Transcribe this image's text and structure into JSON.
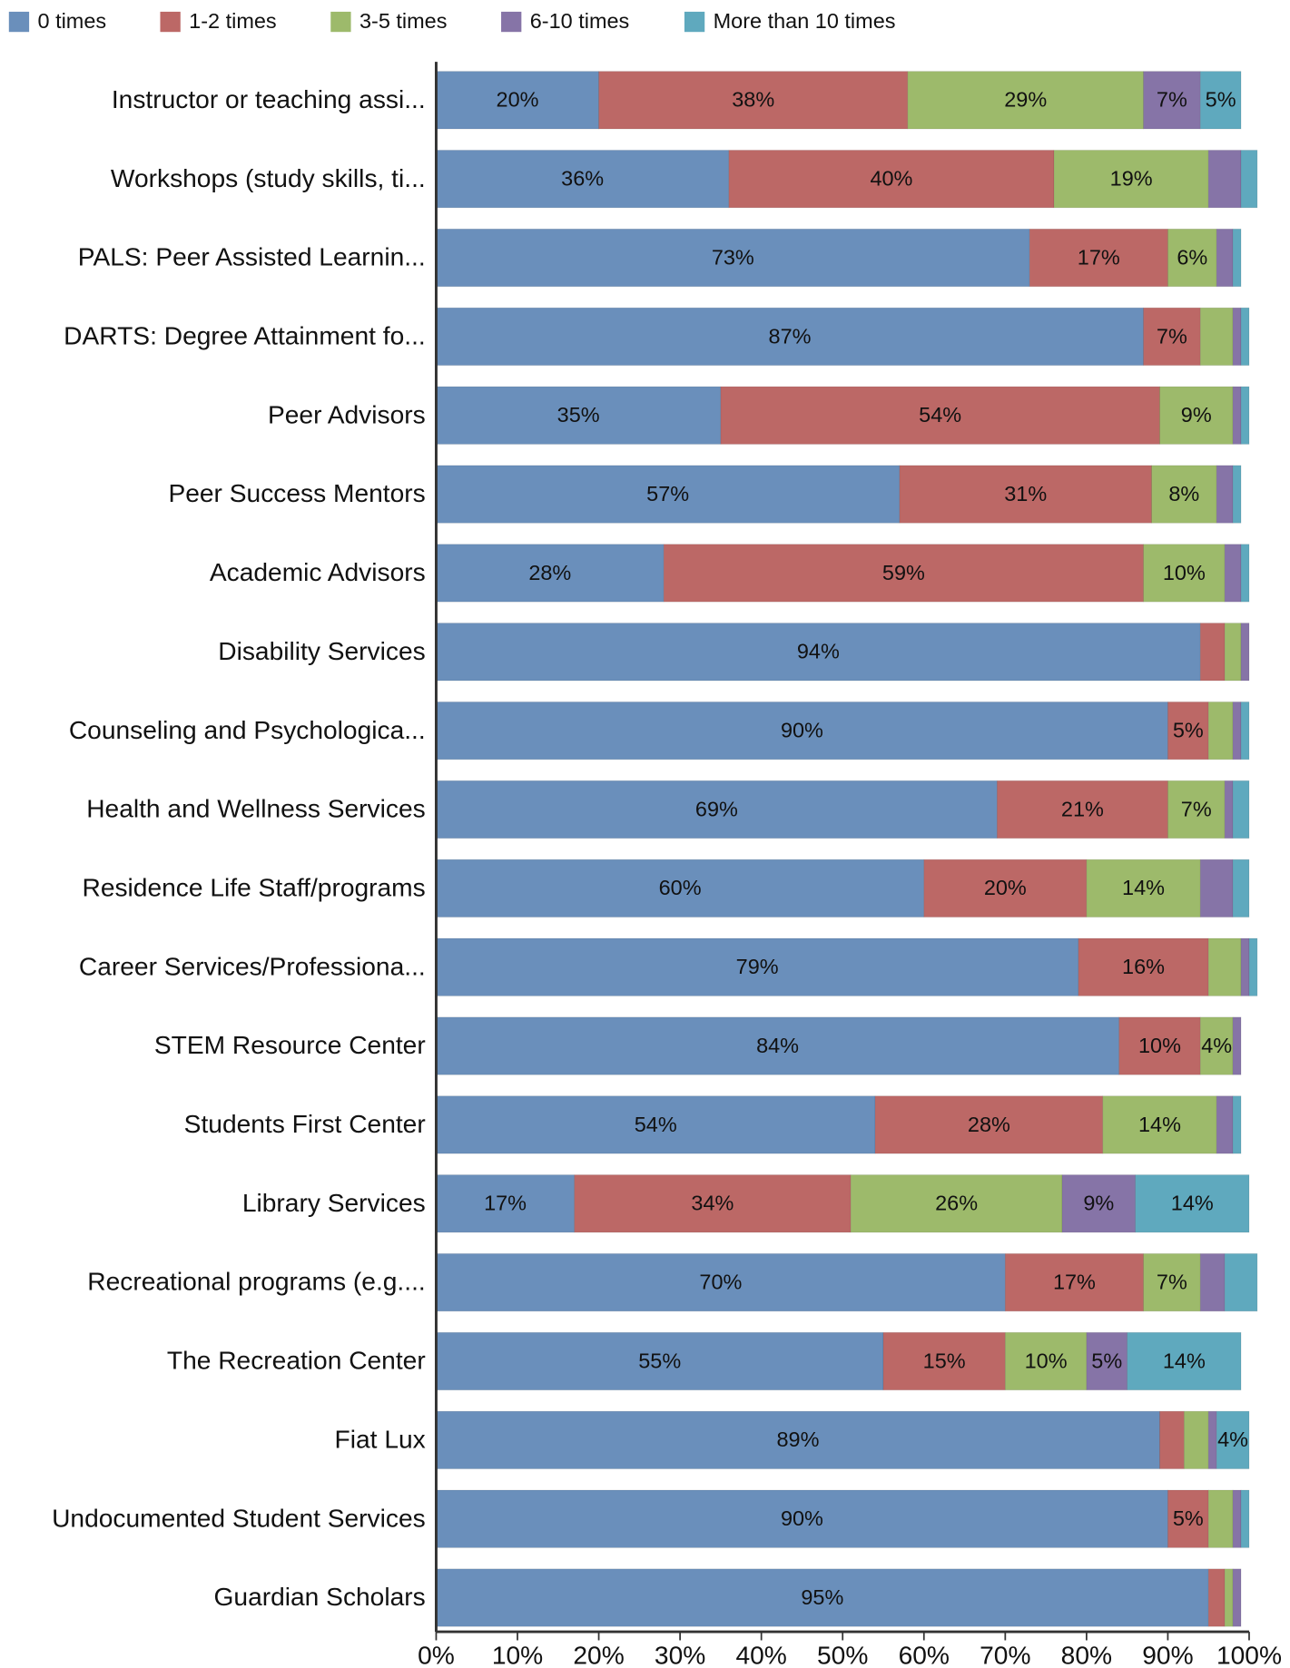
{
  "chart_data": {
    "type": "stacked_bar_horizontal",
    "categories": [
      "Instructor or teaching assi...",
      "Workshops (study skills, ti...",
      "PALS: Peer Assisted Learnin...",
      "DARTS: Degree Attainment fo...",
      "Peer Advisors",
      "Peer Success Mentors",
      "Academic Advisors",
      "Disability Services",
      "Counseling and Psychologica...",
      "Health and Wellness Services",
      "Residence Life Staff/programs",
      "Career Services/Professiona...",
      "STEM Resource Center",
      "Students First Center",
      "Library Services",
      "Recreational programs (e.g....",
      "The Recreation Center",
      "Fiat Lux",
      "Undocumented Student Services",
      "Guardian Scholars"
    ],
    "series": [
      {
        "name": "0 times",
        "color": "#6a8fbb",
        "values": [
          20,
          36,
          73,
          87,
          35,
          57,
          28,
          94,
          90,
          69,
          60,
          79,
          84,
          54,
          17,
          70,
          55,
          89,
          90,
          95
        ],
        "value_labels": [
          "20%",
          "36%",
          "73%",
          "87%",
          "35%",
          "57%",
          "28%",
          "94%",
          "90%",
          "69%",
          "60%",
          "79%",
          "84%",
          "54%",
          "17%",
          "70%",
          "55%",
          "89%",
          "90%",
          "95%"
        ]
      },
      {
        "name": "1-2 times",
        "color": "#bc6866",
        "values": [
          38,
          40,
          17,
          7,
          54,
          31,
          59,
          3,
          5,
          21,
          20,
          16,
          10,
          28,
          34,
          17,
          15,
          3,
          5,
          2
        ],
        "value_labels": [
          "38%",
          "40%",
          "17%",
          "7%",
          "54%",
          "31%",
          "59%",
          null,
          "5%",
          "21%",
          "20%",
          "16%",
          "10%",
          "28%",
          "34%",
          "17%",
          "15%",
          null,
          "5%",
          null
        ]
      },
      {
        "name": "3-5 times",
        "color": "#9dba6b",
        "values": [
          29,
          19,
          6,
          4,
          9,
          8,
          10,
          2,
          3,
          7,
          14,
          4,
          4,
          14,
          26,
          7,
          10,
          3,
          3,
          1
        ],
        "value_labels": [
          "29%",
          "19%",
          "6%",
          null,
          "9%",
          "8%",
          "10%",
          null,
          null,
          "7%",
          "14%",
          null,
          "4%",
          "14%",
          "26%",
          "7%",
          "10%",
          null,
          null,
          null
        ]
      },
      {
        "name": "6-10 times",
        "color": "#8674a7",
        "values": [
          7,
          4,
          2,
          1,
          1,
          2,
          2,
          1,
          1,
          1,
          4,
          1,
          1,
          2,
          9,
          3,
          5,
          1,
          1,
          1
        ],
        "value_labels": [
          "7%",
          null,
          null,
          null,
          null,
          null,
          null,
          null,
          null,
          null,
          null,
          null,
          null,
          null,
          "9%",
          null,
          "5%",
          null,
          null,
          null
        ]
      },
      {
        "name": "More than 10 times",
        "color": "#5fa9be",
        "values": [
          5,
          2,
          1,
          1,
          1,
          1,
          1,
          0,
          1,
          2,
          2,
          1,
          0,
          1,
          14,
          4,
          14,
          4,
          1,
          0
        ],
        "value_labels": [
          "5%",
          null,
          null,
          null,
          null,
          null,
          null,
          null,
          null,
          null,
          null,
          null,
          null,
          null,
          "14%",
          null,
          "14%",
          "4%",
          null,
          null
        ]
      }
    ],
    "xlim": [
      0,
      100
    ],
    "xticks": [
      {
        "value": 0,
        "label": "0%"
      },
      {
        "value": 10,
        "label": "10%"
      },
      {
        "value": 20,
        "label": "20%"
      },
      {
        "value": 30,
        "label": "30%"
      },
      {
        "value": 40,
        "label": "40%"
      },
      {
        "value": 50,
        "label": "50%"
      },
      {
        "value": 60,
        "label": "60%"
      },
      {
        "value": 70,
        "label": "70%"
      },
      {
        "value": 80,
        "label": "80%"
      },
      {
        "value": 90,
        "label": "90%"
      },
      {
        "value": 100,
        "label": "100%"
      }
    ],
    "legend": "top"
  }
}
